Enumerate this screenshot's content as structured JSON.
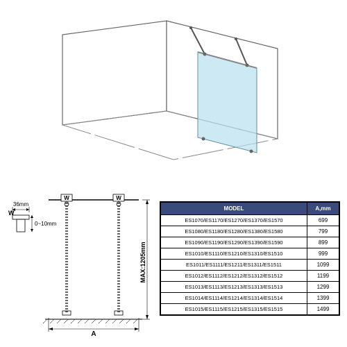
{
  "iso": {
    "wall_stroke": "#666666",
    "wall_fill": "#ffffff",
    "floor_stroke": "#888888",
    "glass_fill": "#b8e0f0",
    "glass_fill_opacity": 0.7,
    "glass_stroke": "#6090a0",
    "bar_stroke": "#555555"
  },
  "tech": {
    "stroke": "#000000",
    "dash": "3,2",
    "labels": {
      "w": "W",
      "a": "A",
      "max": "MAX:1205mm",
      "thirtysix": "36mm",
      "tol": "0~10mm"
    },
    "fontsize": 9
  },
  "table": {
    "header_bg": "#3a4a7a",
    "header_color": "#ffffff",
    "columns": [
      "MODEL",
      "A,mm"
    ],
    "rows": [
      [
        "ES1070/ES1170/ES1270/ES1370/ES1570",
        "699"
      ],
      [
        "ES1080/ES1180/ES1280/ES1380/ES1580",
        "799"
      ],
      [
        "ES1090/ES1190/ES1290/ES1390/ES1590",
        "899"
      ],
      [
        "ES1010/ES1110/ES1210/ES1310/ES1510",
        "999"
      ],
      [
        "ES1011/ES1111/ES1211/ES1311/ES1511",
        "1099"
      ],
      [
        "ES1012/ES1112/ES1212/ES1312/ES1512",
        "1199"
      ],
      [
        "ES1013/ES1113/ES1213/ES1313/ES1513",
        "1299"
      ],
      [
        "ES1014/ES1114/ES1214/ES1314/ES1514",
        "1399"
      ],
      [
        "ES1015/ES1115/ES1215/ES1315/ES1515",
        "1499"
      ]
    ]
  }
}
